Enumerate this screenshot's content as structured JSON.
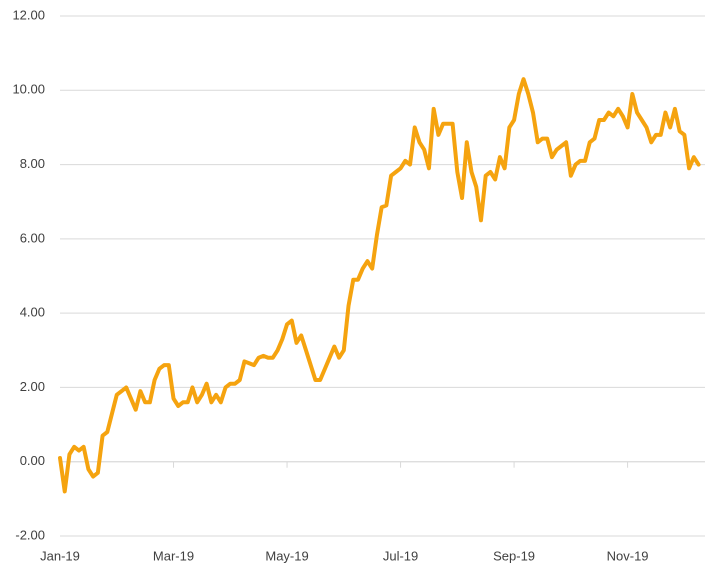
{
  "chart_data": {
    "type": "line",
    "categories": [
      "Jan-19",
      null,
      null,
      null,
      null,
      null,
      null,
      null,
      null,
      null,
      null,
      null,
      null,
      null,
      null,
      null,
      null,
      null,
      null,
      null,
      null,
      null,
      null,
      null,
      "Mar-19",
      null,
      null,
      null,
      null,
      null,
      null,
      null,
      null,
      null,
      null,
      null,
      null,
      null,
      null,
      null,
      null,
      null,
      null,
      null,
      null,
      null,
      null,
      null,
      "May-19",
      null,
      null,
      null,
      null,
      null,
      null,
      null,
      null,
      null,
      null,
      null,
      null,
      null,
      null,
      null,
      null,
      null,
      null,
      null,
      null,
      null,
      null,
      null,
      "Jul-19",
      null,
      null,
      null,
      null,
      null,
      null,
      null,
      null,
      null,
      null,
      null,
      null,
      null,
      null,
      null,
      null,
      null,
      null,
      null,
      null,
      null,
      null,
      null,
      "Sep-19",
      null,
      null,
      null,
      null,
      null,
      null,
      null,
      null,
      null,
      null,
      null,
      null,
      null,
      null,
      null,
      null,
      null,
      null,
      null,
      null,
      null,
      null,
      null,
      "Nov-19",
      null,
      null,
      null,
      null,
      null,
      null,
      null,
      null,
      null,
      null,
      null,
      null,
      null,
      null,
      null
    ],
    "values": [
      0.1,
      -0.8,
      0.2,
      0.4,
      0.3,
      0.4,
      -0.2,
      -0.4,
      -0.3,
      0.7,
      0.8,
      1.3,
      1.8,
      1.9,
      2.0,
      1.7,
      1.4,
      1.9,
      1.6,
      1.6,
      2.2,
      2.5,
      2.6,
      2.6,
      1.7,
      1.5,
      1.6,
      1.6,
      2.0,
      1.6,
      1.8,
      2.1,
      1.6,
      1.8,
      1.6,
      2.0,
      2.1,
      2.1,
      2.2,
      2.7,
      2.65,
      2.6,
      2.8,
      2.85,
      2.8,
      2.8,
      3.0,
      3.3,
      3.7,
      3.8,
      3.2,
      3.4,
      3.0,
      2.6,
      2.2,
      2.2,
      2.5,
      2.8,
      3.1,
      2.8,
      3.0,
      4.2,
      4.9,
      4.9,
      5.2,
      5.4,
      5.2,
      6.1,
      6.85,
      6.9,
      7.7,
      7.8,
      7.9,
      8.1,
      8.0,
      9.0,
      8.6,
      8.4,
      7.9,
      9.5,
      8.8,
      9.1,
      9.1,
      9.1,
      7.8,
      7.1,
      8.6,
      7.8,
      7.4,
      6.5,
      7.7,
      7.8,
      7.6,
      8.2,
      7.9,
      9.0,
      9.2,
      9.9,
      10.3,
      9.9,
      9.4,
      8.6,
      8.7,
      8.7,
      8.2,
      8.4,
      8.5,
      8.6,
      7.7,
      8.0,
      8.1,
      8.1,
      8.6,
      8.7,
      9.2,
      9.2,
      9.4,
      9.3,
      9.5,
      9.3,
      9.0,
      9.9,
      9.4,
      9.2,
      9.0,
      8.6,
      8.8,
      8.8,
      9.4,
      9.0,
      9.5,
      8.9,
      8.8,
      7.9,
      8.2,
      8.0
    ],
    "color": "#f5a30f",
    "ylim": [
      -2,
      12
    ],
    "yticks": [
      {
        "value": -2,
        "label": "-2.00"
      },
      {
        "value": 0,
        "label": "0.00"
      },
      {
        "value": 2,
        "label": "2.00"
      },
      {
        "value": 4,
        "label": "4.00"
      },
      {
        "value": 6,
        "label": "6.00"
      },
      {
        "value": 8,
        "label": "8.00"
      },
      {
        "value": 10,
        "label": "10.00"
      },
      {
        "value": 12,
        "label": "12.00"
      }
    ],
    "grid": true
  }
}
